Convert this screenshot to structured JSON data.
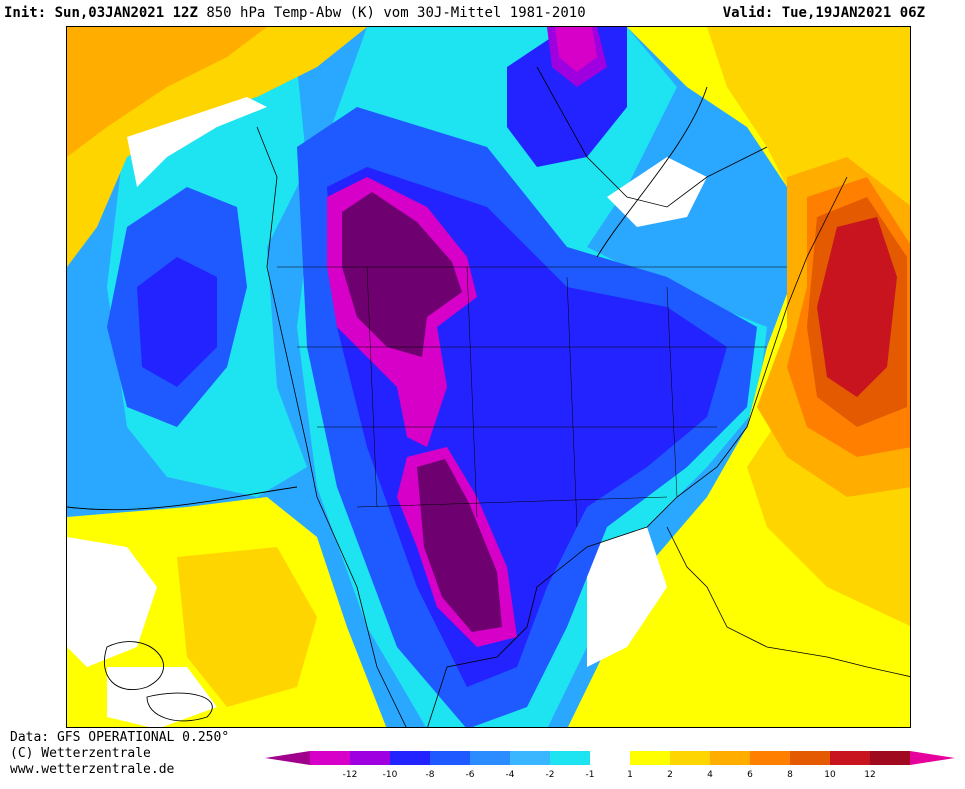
{
  "header": {
    "init_label": "Init:",
    "init_value": "Sun,03JAN2021 12Z",
    "title": "850 hPa Temp-Abw (K) vom 30J-Mittel 1981-2010",
    "valid_label": "Valid:",
    "valid_value": "Tue,19JAN2021 06Z"
  },
  "footer": {
    "data_source": "Data: GFS OPERATIONAL 0.250°",
    "copyright": "(C) Wetterzentrale",
    "website": "www.wetterzentrale.de"
  },
  "legend": {
    "ticks": [
      "-12",
      "-10",
      "-8",
      "-6",
      "-4",
      "-2",
      "-1",
      "1",
      "2",
      "4",
      "6",
      "8",
      "10",
      "12"
    ],
    "colors": [
      "#d600c8",
      "#9e00e0",
      "#2323ff",
      "#1e5aff",
      "#2a8cff",
      "#3ab6ff",
      "#1ee3f0",
      "#ffffff",
      "#ffff00",
      "#ffd500",
      "#ffae00",
      "#ff8000",
      "#e35a00",
      "#c8141e",
      "#a00a1e"
    ],
    "min_arrow_color": "#a0008c",
    "max_arrow_color": "#e6009c"
  },
  "map": {
    "region": "North America",
    "variable": "850 hPa temperature anomaly (K)",
    "regions": [
      {
        "name": "cold core Great Plains / Rockies",
        "anomaly_k": -12
      },
      {
        "name": "cold core southern Plains / Texas",
        "anomaly_k": -12
      },
      {
        "name": "cold core Hudson Bay",
        "anomaly_k": -10
      },
      {
        "name": "warm core Atlantic off New England",
        "anomaly_k": 10
      },
      {
        "name": "warm Gulf of Mexico / Caribbean",
        "anomaly_k": 2
      },
      {
        "name": "warm northeast Pacific",
        "anomaly_k": 2
      },
      {
        "name": "warm Greenland / Labrador Sea",
        "anomaly_k": 2
      }
    ]
  }
}
